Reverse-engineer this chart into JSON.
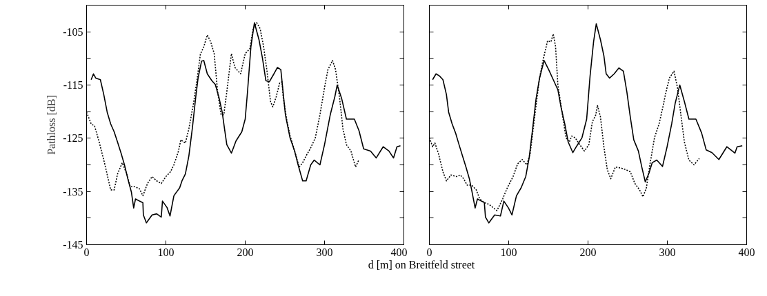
{
  "chart_data": [
    {
      "type": "line",
      "ylabel": "Pathloss [dB]",
      "xlabel": "d [m] on Breitfeld street",
      "xlim": [
        0,
        400
      ],
      "ylim": [
        -145,
        -100
      ],
      "xticks": [
        0,
        100,
        200,
        300,
        400
      ],
      "yticks": [
        -105,
        {
          "value": -110,
          "label": null
        },
        -115,
        {
          "value": -120,
          "label": null
        },
        -125,
        {
          "value": -130,
          "label": null
        },
        -135,
        {
          "value": -140,
          "label": null
        },
        -145
      ],
      "series": [
        {
          "color": "#000000",
          "line_style": "solid",
          "x": [
            5.8,
            8.7,
            11.6,
            17.4,
            21.7,
            26,
            30.4,
            34.8,
            39,
            43.5,
            47.8,
            52,
            56.5,
            59.4,
            61.7,
            66.7,
            71,
            71.6,
            75.4,
            82.6,
            88.4,
            94.2,
            95.7,
            101.4,
            105.2,
            110.1,
            117.4,
            120.3,
            124.6,
            129,
            133.3,
            137.7,
            140.6,
            145,
            147.8,
            152.2,
            158,
            162.3,
            166.7,
            171,
            173.9,
            176.8,
            182.6,
            188.4,
            195.7,
            200,
            202.9,
            207.2,
            211.6,
            217.4,
            221.7,
            226.1,
            230.4,
            236.2,
            240.6,
            244.9,
            250.7,
            256.5,
            262.3,
            266.7,
            272.4,
            276.8,
            282.6,
            287,
            294.2,
            300,
            307.2,
            313,
            316,
            321.7,
            327.6,
            337.6,
            343.5,
            349.3,
            358,
            365.2,
            373.9,
            381.2,
            387,
            391.3,
            395.7
          ],
          "values": [
            -114,
            -112.9,
            -113.7,
            -114,
            -116.8,
            -120.1,
            -122.3,
            -123.8,
            -125.7,
            -127.8,
            -130,
            -132.6,
            -135.1,
            -138.1,
            -136.4,
            -136.8,
            -137.1,
            -139.4,
            -140.9,
            -139.4,
            -139.2,
            -139.8,
            -136.8,
            -138,
            -139.6,
            -135.8,
            -134.3,
            -133,
            -131.7,
            -128.3,
            -123.2,
            -117.2,
            -113.7,
            -110.5,
            -110.4,
            -112.9,
            -114.2,
            -114.9,
            -117.2,
            -120.1,
            -123.2,
            -126.2,
            -127.8,
            -125.5,
            -123.8,
            -121.4,
            -116.3,
            -107.8,
            -103.3,
            -106.5,
            -109.9,
            -114.2,
            -114.4,
            -112.9,
            -111.7,
            -112.1,
            -120.6,
            -124.9,
            -127.4,
            -130,
            -133,
            -133,
            -130,
            -129.1,
            -130,
            -126.2,
            -120.6,
            -117.2,
            -115,
            -117.6,
            -121.4,
            -121.4,
            -123.6,
            -127,
            -127.4,
            -128.7,
            -126.6,
            -127.4,
            -128.7,
            -126.6,
            -126.4
          ]
        },
        {
          "color": "#000000",
          "line_style": "dotted",
          "x": [
            0,
            5.8,
            10.1,
            15.9,
            23.2,
            30.4,
            34.8,
            39.1,
            45,
            50.7,
            55,
            60.9,
            66.7,
            71,
            76.8,
            82.6,
            88.4,
            94.2,
            100,
            105.8,
            110.1,
            115.9,
            118.8,
            124.6,
            129,
            134.8,
            139.1,
            143.5,
            147.8,
            152.2,
            156.5,
            160.9,
            165.2,
            169.6,
            173,
            176.8,
            182.6,
            187,
            194.2,
            200,
            205.8,
            210.1,
            214.5,
            218.8,
            223.2,
            227.5,
            231.9,
            234.8,
            239.1,
            243.5,
            246.4,
            247.8,
            252.2,
            256.5,
            262.3,
            268.1,
            272.4,
            276.8,
            282.6,
            288.4,
            294.2,
            300,
            304.3,
            310.1,
            313.9,
            318.8,
            323.2,
            327.6,
            333.3,
            339.1,
            343.5
          ],
          "values": [
            -120.1,
            -122.3,
            -122.7,
            -125.7,
            -130,
            -134.7,
            -134.7,
            -131.7,
            -129.6,
            -131.7,
            -134.1,
            -134.1,
            -134.5,
            -135.8,
            -133.5,
            -132.2,
            -133,
            -133.5,
            -132.2,
            -131.3,
            -130,
            -127.4,
            -125.3,
            -125.9,
            -123.2,
            -118.5,
            -114.2,
            -109.2,
            -107.8,
            -105.6,
            -106.9,
            -109.1,
            -116.3,
            -120.6,
            -120.6,
            -116.3,
            -109.1,
            -111.7,
            -112.9,
            -109.1,
            -108.2,
            -104.4,
            -103.3,
            -104.4,
            -107.8,
            -112.4,
            -118.1,
            -119.1,
            -117.2,
            -114.6,
            -114.4,
            -117.2,
            -121.4,
            -124.5,
            -127.4,
            -130.4,
            -129.6,
            -128.3,
            -126.8,
            -124.9,
            -120.6,
            -115.5,
            -112.1,
            -110.4,
            -112.1,
            -117.2,
            -123.2,
            -126.2,
            -127.4,
            -130.4,
            -129
          ]
        }
      ]
    },
    {
      "type": "line",
      "tick_labels": "x",
      "xlim": [
        0,
        400
      ],
      "ylim": [
        -145,
        -100
      ],
      "xticks": [
        0,
        100,
        200,
        300,
        400
      ],
      "yticks": [
        -105,
        -110,
        -115,
        -120,
        -125,
        -130,
        -135,
        -140,
        -145
      ],
      "series": [
        {
          "color": "#000000",
          "line_style": "solid",
          "x": [
            4.1,
            8.4,
            12.8,
            17.1,
            21.5,
            24.3,
            28.7,
            33,
            37.4,
            41.7,
            46.1,
            50.4,
            53.3,
            57.7,
            60.6,
            69.3,
            70.7,
            75,
            82.3,
            89.6,
            93.9,
            99.7,
            104.1,
            109.8,
            115.7,
            121.5,
            125.8,
            130.2,
            134.5,
            138.9,
            144.6,
            150.4,
            156.2,
            162,
            166.3,
            170.7,
            175,
            180.9,
            185.2,
            192.4,
            198.3,
            202.6,
            207,
            210.4,
            215.7,
            220,
            222.9,
            227.2,
            233,
            238.9,
            244.6,
            249,
            253.3,
            257.7,
            263.5,
            267.8,
            272.2,
            276.5,
            280.9,
            286.7,
            293.9,
            299.7,
            305.5,
            309.8,
            315.7,
            321.5,
            327.2,
            336,
            343.2,
            349,
            356.3,
            365,
            375,
            385.2,
            388,
            394.5
          ],
          "values": [
            -114,
            -112.9,
            -113.3,
            -114,
            -116.8,
            -120.1,
            -122.3,
            -124,
            -126.2,
            -128.3,
            -130.4,
            -132.6,
            -134.7,
            -138.1,
            -136.4,
            -137.1,
            -139.8,
            -140.9,
            -139.4,
            -139.6,
            -136.8,
            -138.1,
            -139.4,
            -135.8,
            -134.3,
            -132.2,
            -128.7,
            -123.2,
            -117.6,
            -113.7,
            -110.4,
            -112.1,
            -114,
            -115.9,
            -119.4,
            -122.3,
            -125.7,
            -127.7,
            -126.6,
            -124.9,
            -121.4,
            -113.3,
            -106.9,
            -103.5,
            -106.5,
            -109.5,
            -112.9,
            -113.7,
            -112.9,
            -111.8,
            -112.4,
            -116.3,
            -121,
            -125.3,
            -127.4,
            -130.4,
            -133.2,
            -131.7,
            -129.6,
            -129.1,
            -130.3,
            -126.6,
            -122.3,
            -118.5,
            -115,
            -118.1,
            -121.4,
            -121.4,
            -124,
            -127.2,
            -127.7,
            -129,
            -126.6,
            -127.8,
            -126.6,
            -126.4
          ]
        },
        {
          "color": "#000000",
          "line_style": "dotted",
          "x": [
            0,
            4.1,
            7,
            11.3,
            17.1,
            21.5,
            27.2,
            34.5,
            38.9,
            43.2,
            47.6,
            53.3,
            59.1,
            63.5,
            69.3,
            75,
            80.9,
            85.2,
            92.4,
            98.3,
            105.5,
            111.3,
            117.1,
            122.9,
            127.2,
            133,
            138.9,
            143.2,
            149,
            153.3,
            156.2,
            159.1,
            162,
            167.8,
            172.2,
            176.5,
            179.4,
            183.7,
            189.6,
            195.4,
            201.1,
            205.5,
            209.8,
            211.9,
            215.7,
            220,
            224.3,
            228.7,
            234.5,
            241.7,
            247.6,
            253.3,
            259.1,
            265,
            269.3,
            273.6,
            278,
            283.8,
            289.6,
            294,
            298.3,
            302.6,
            308.4,
            312.8,
            317.1,
            321.5,
            327.2,
            333.6,
            340.3
          ],
          "values": [
            -124.9,
            -126.6,
            -125.9,
            -127.8,
            -131.3,
            -133,
            -131.9,
            -132.2,
            -131.9,
            -132.6,
            -133.8,
            -133.8,
            -134.7,
            -136.4,
            -137.1,
            -137.4,
            -138.1,
            -138.6,
            -136.4,
            -134.3,
            -132.2,
            -129.8,
            -129,
            -130,
            -127.8,
            -120.6,
            -113.7,
            -110.4,
            -106.7,
            -106.9,
            -105.4,
            -107.8,
            -115,
            -120.6,
            -124.9,
            -125.7,
            -124.6,
            -124.9,
            -126.2,
            -127.4,
            -126.2,
            -121.9,
            -120.6,
            -118.8,
            -121,
            -126.6,
            -130.9,
            -132.6,
            -130.4,
            -130.6,
            -130.9,
            -131.3,
            -133.5,
            -134.7,
            -136,
            -134.3,
            -130,
            -124.9,
            -122.3,
            -119.4,
            -116.3,
            -113.7,
            -112.4,
            -115.5,
            -120.6,
            -125.7,
            -129.1,
            -130,
            -128.8
          ]
        }
      ]
    }
  ]
}
